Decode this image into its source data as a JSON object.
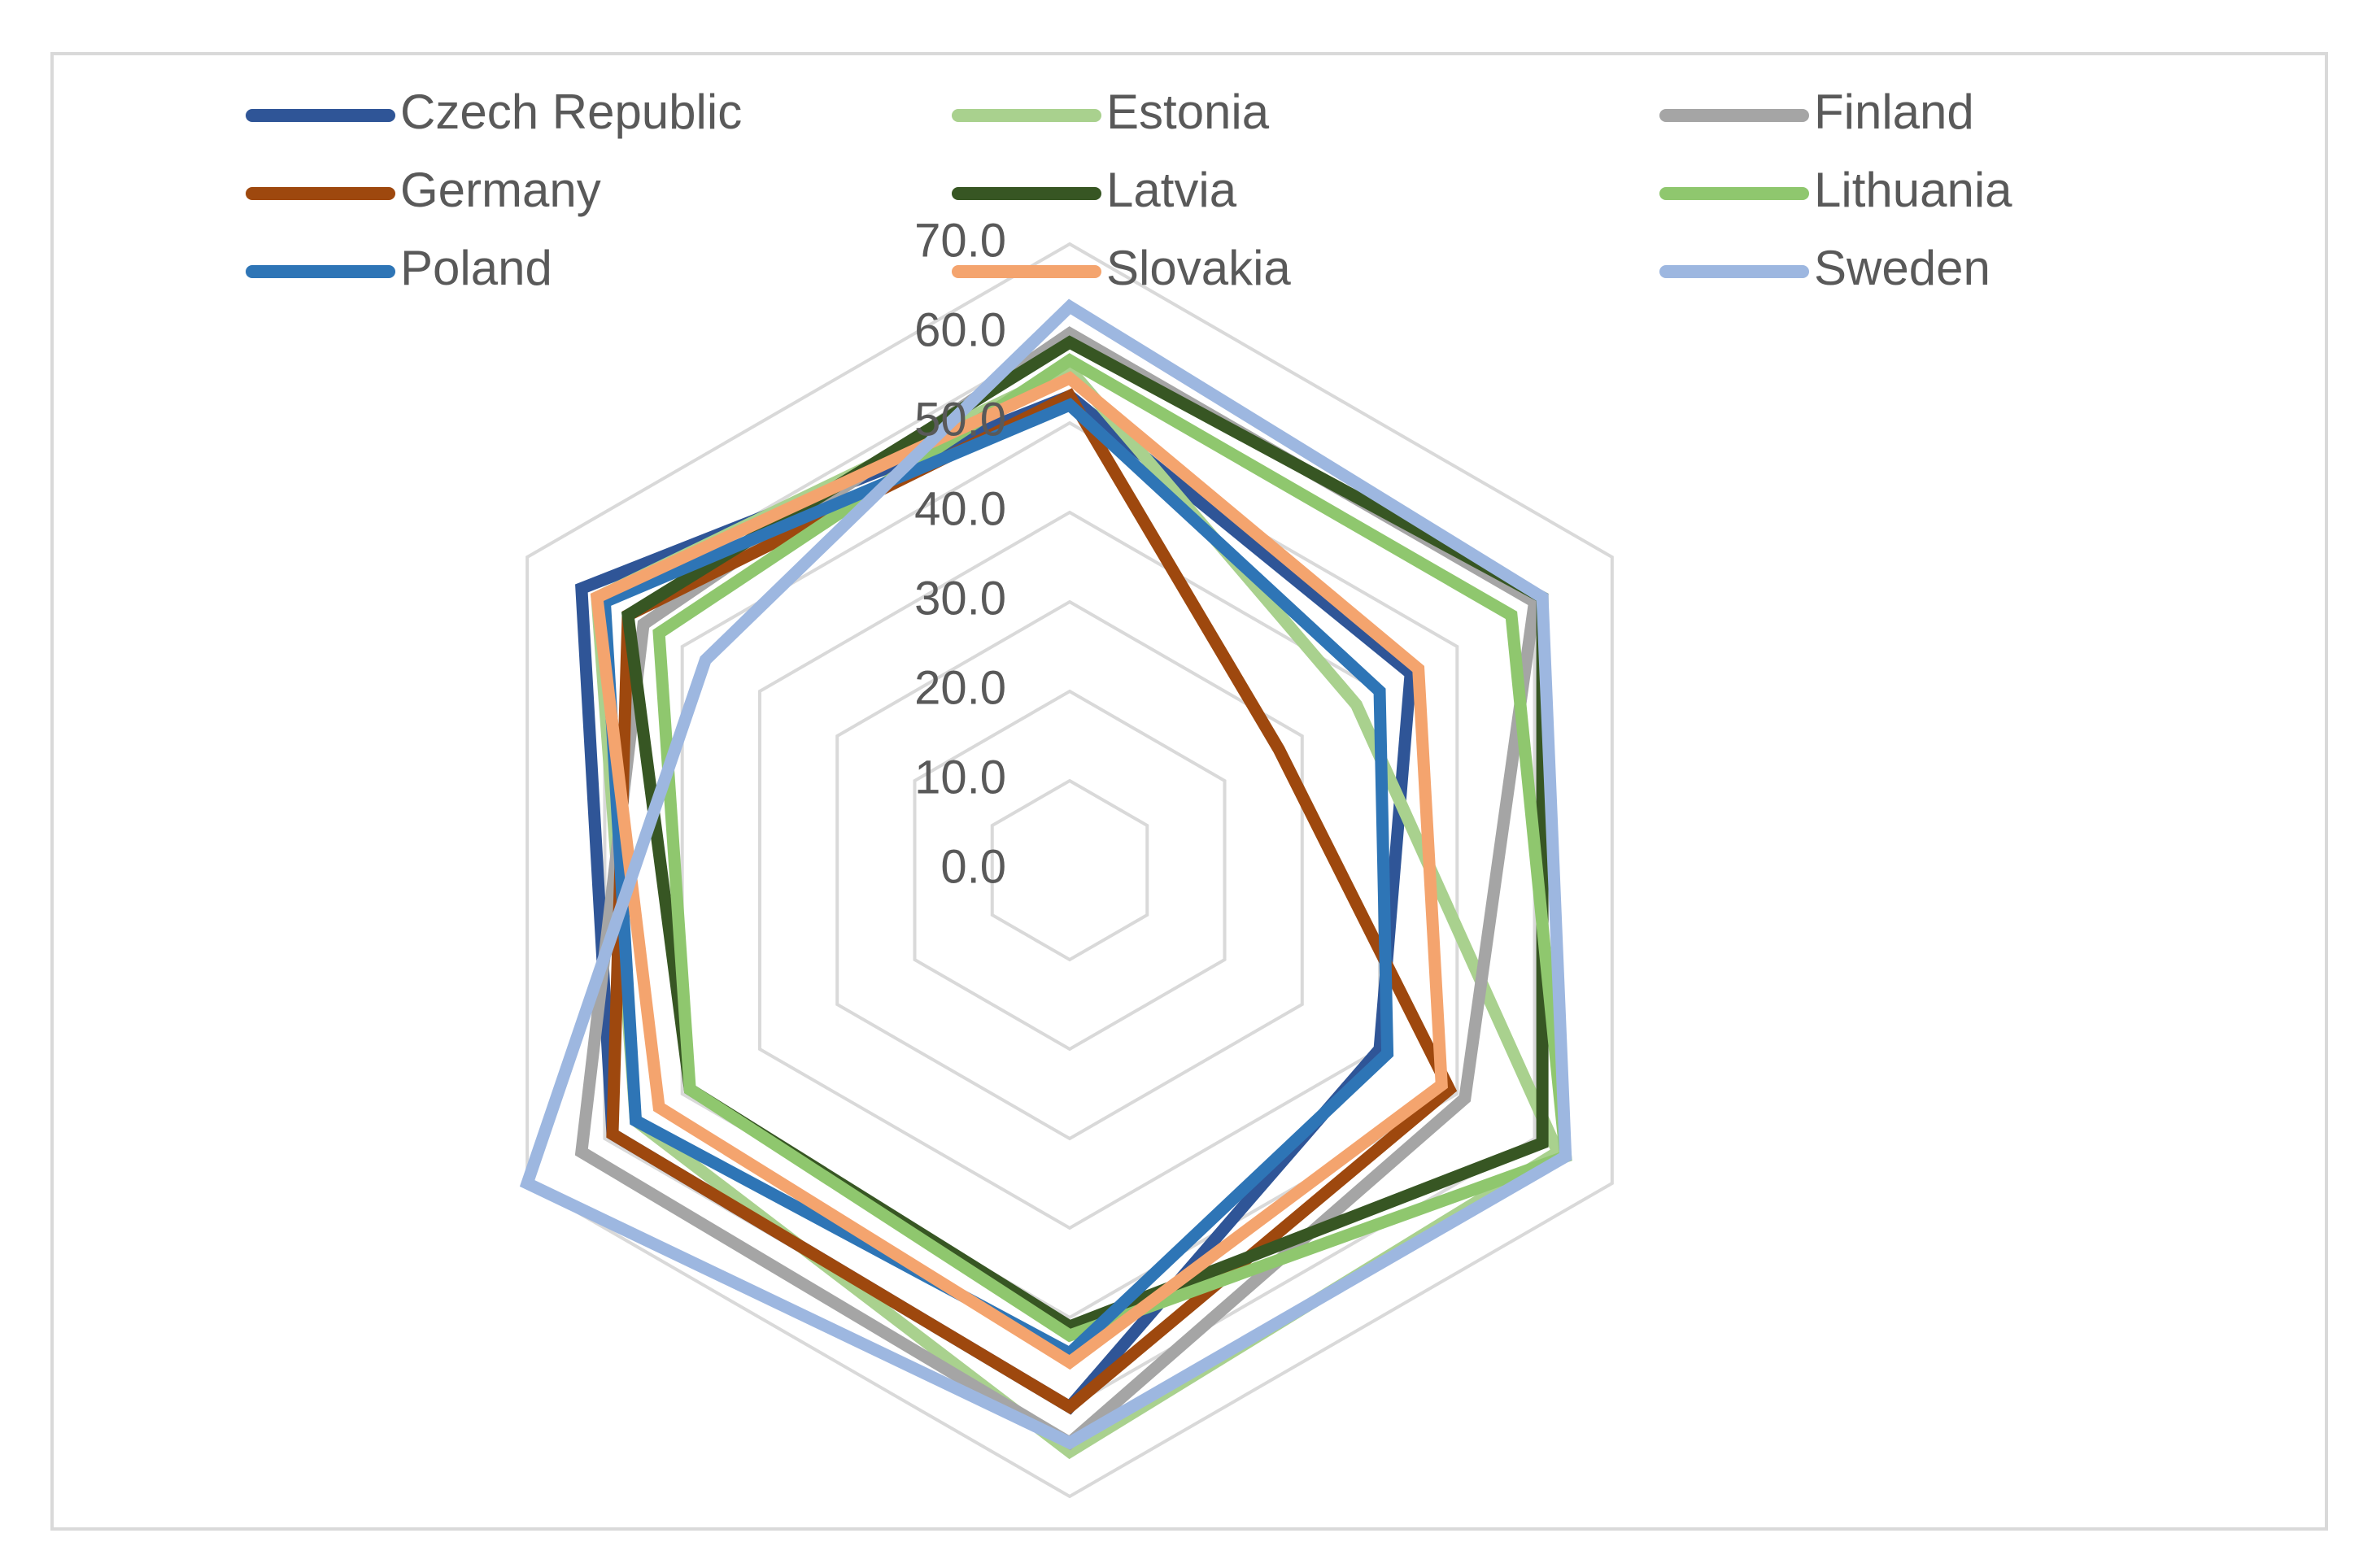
{
  "chart_data": {
    "type": "radar",
    "title": "",
    "axis_count": 6,
    "categories": [
      "",
      "",
      "",
      "",
      "",
      ""
    ],
    "rmin": 0,
    "rmax": 70,
    "ticks": [
      {
        "value": 0,
        "label": "0.0"
      },
      {
        "value": 10,
        "label": "10.0"
      },
      {
        "value": 20,
        "label": "20.0"
      },
      {
        "value": 30,
        "label": "30.0"
      },
      {
        "value": 40,
        "label": "40.0"
      },
      {
        "value": 50,
        "label": "50.0"
      },
      {
        "value": 60,
        "label": "60.0"
      },
      {
        "value": 70,
        "label": "70.0"
      }
    ],
    "legend_position": "top",
    "series": [
      {
        "name": "Czech Republic",
        "color": "#2F5597",
        "values": [
          53,
          44,
          40,
          60,
          59,
          63
        ]
      },
      {
        "name": "Estonia",
        "color": "#A9D18E",
        "values": [
          56,
          37,
          63,
          65,
          56,
          61
        ]
      },
      {
        "name": "Finland",
        "color": "#A5A5A5",
        "values": [
          60,
          60,
          51,
          64,
          63,
          55
        ]
      },
      {
        "name": "Germany",
        "color": "#9E480E",
        "values": [
          53,
          27,
          49,
          60,
          59,
          57
        ]
      },
      {
        "name": "Latvia",
        "color": "#375623",
        "values": [
          59,
          61,
          61,
          51,
          49,
          57
        ]
      },
      {
        "name": "Lithuania",
        "color": "#8FC76E",
        "values": [
          57,
          57,
          64,
          52,
          49,
          53
        ]
      },
      {
        "name": "Poland",
        "color": "#2E75B6",
        "values": [
          52,
          40,
          41,
          54,
          56,
          60
        ]
      },
      {
        "name": "Slovakia",
        "color": "#F4A46E",
        "values": [
          55,
          45,
          48,
          55,
          53,
          61
        ]
      },
      {
        "name": "Sweden",
        "color": "#9DB7E0",
        "values": [
          63,
          61,
          64,
          64,
          70,
          47
        ]
      }
    ]
  }
}
